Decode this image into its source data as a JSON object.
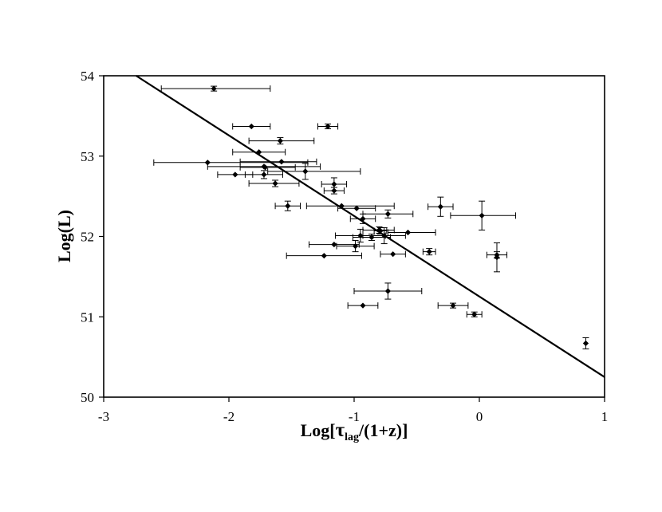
{
  "chart_data": {
    "type": "scatter",
    "title": "",
    "xlabel": {
      "main": "Log[",
      "greek": "τ",
      "sub": "lag",
      "rest": "/(1+z)]"
    },
    "ylabel": "Log(L)",
    "xlim": [
      -3,
      1
    ],
    "ylim": [
      50,
      54
    ],
    "x_ticks": [
      -3,
      -2,
      -1,
      0,
      1
    ],
    "y_ticks": [
      50,
      51,
      52,
      53,
      54
    ],
    "x_tick_labels": [
      "-3",
      "-2",
      "-1",
      "0",
      "1"
    ],
    "y_tick_labels": [
      "50",
      "51",
      "52",
      "53",
      "54"
    ],
    "grid": false,
    "legend": "none",
    "fit_line": {
      "x": [
        -3,
        1
      ],
      "y": [
        54.26,
        50.25
      ]
    },
    "series": [
      {
        "points": [
          {
            "x": -2.12,
            "y": 53.84,
            "xerr": [
              0.42,
              0.45
            ],
            "yerr": [
              0.03,
              0.03
            ]
          },
          {
            "x": -1.82,
            "y": 53.37,
            "xerr": [
              0.15,
              0.15
            ],
            "yerr": [
              0,
              0
            ]
          },
          {
            "x": -1.21,
            "y": 53.37,
            "xerr": [
              0.08,
              0.08
            ],
            "yerr": [
              0.03,
              0.03
            ]
          },
          {
            "x": -1.59,
            "y": 53.19,
            "xerr": [
              0.25,
              0.27
            ],
            "yerr": [
              0.04,
              0.04
            ]
          },
          {
            "x": -1.76,
            "y": 53.05,
            "xerr": [
              0.21,
              0.21
            ],
            "yerr": [
              0,
              0
            ]
          },
          {
            "x": -2.17,
            "y": 52.92,
            "xerr": [
              0.43,
              0.8
            ],
            "yerr": [
              0,
              0
            ]
          },
          {
            "x": -1.58,
            "y": 52.93,
            "xerr": [
              0.33,
              0.28
            ],
            "yerr": [
              0,
              0
            ]
          },
          {
            "x": -1.72,
            "y": 52.87,
            "xerr": [
              0.45,
              0.45
            ],
            "yerr": [
              0,
              0
            ]
          },
          {
            "x": -1.71,
            "y": 52.86,
            "xerr": [
              0.2,
              0.24
            ],
            "yerr": [
              0,
              0
            ]
          },
          {
            "x": -1.39,
            "y": 52.81,
            "xerr": [
              0.3,
              0.44
            ],
            "yerr": [
              0.1,
              0.1
            ]
          },
          {
            "x": -1.72,
            "y": 52.77,
            "xerr": [
              0.15,
              0.15
            ],
            "yerr": [
              0.05,
              0.05
            ]
          },
          {
            "x": -1.95,
            "y": 52.77,
            "xerr": [
              0.14,
              0.14
            ],
            "yerr": [
              0,
              0
            ]
          },
          {
            "x": -1.63,
            "y": 52.66,
            "xerr": [
              0.21,
              0.19
            ],
            "yerr": [
              0.04,
              0.04
            ]
          },
          {
            "x": -1.16,
            "y": 52.65,
            "xerr": [
              0.1,
              0.1
            ],
            "yerr": [
              0.08,
              0.08
            ]
          },
          {
            "x": -1.16,
            "y": 52.57,
            "xerr": [
              0.08,
              0.08
            ],
            "yerr": [
              0.04,
              0.04
            ]
          },
          {
            "x": -1.53,
            "y": 52.38,
            "xerr": [
              0.1,
              0.1
            ],
            "yerr": [
              0.06,
              0.06
            ]
          },
          {
            "x": -1.1,
            "y": 52.38,
            "xerr": [
              0.28,
              0.42
            ],
            "yerr": [
              0,
              0
            ]
          },
          {
            "x": -0.98,
            "y": 52.35,
            "xerr": [
              0.15,
              0.15
            ],
            "yerr": [
              0,
              0
            ]
          },
          {
            "x": -0.31,
            "y": 52.37,
            "xerr": [
              0.1,
              0.1
            ],
            "yerr": [
              0.12,
              0.12
            ]
          },
          {
            "x": 0.02,
            "y": 52.26,
            "xerr": [
              0.25,
              0.27
            ],
            "yerr": [
              0.18,
              0.18
            ]
          },
          {
            "x": -0.73,
            "y": 52.28,
            "xerr": [
              0.2,
              0.2
            ],
            "yerr": [
              0.05,
              0.05
            ]
          },
          {
            "x": -0.93,
            "y": 52.22,
            "xerr": [
              0.1,
              0.1
            ],
            "yerr": [
              0.06,
              0.06
            ]
          },
          {
            "x": -0.8,
            "y": 52.08,
            "xerr": [
              0.13,
              0.12
            ],
            "yerr": [
              0.04,
              0.04
            ]
          },
          {
            "x": -0.79,
            "y": 52.07,
            "xerr": [
              0.05,
              0.05
            ],
            "yerr": [
              0.04,
              0.04
            ]
          },
          {
            "x": -0.57,
            "y": 52.05,
            "xerr": [
              0.16,
              0.22
            ],
            "yerr": [
              0,
              0
            ]
          },
          {
            "x": -0.95,
            "y": 52.01,
            "xerr": [
              0.2,
              0.2
            ],
            "yerr": [
              0.08,
              0.08
            ]
          },
          {
            "x": -0.86,
            "y": 51.99,
            "xerr": [
              0.15,
              0.15
            ],
            "yerr": [
              0.04,
              0.04
            ]
          },
          {
            "x": -0.76,
            "y": 52.01,
            "xerr": [
              0.17,
              0.17
            ],
            "yerr": [
              0.1,
              0.1
            ]
          },
          {
            "x": -1.16,
            "y": 51.9,
            "xerr": [
              0.2,
              0.2
            ],
            "yerr": [
              0,
              0
            ]
          },
          {
            "x": -0.99,
            "y": 51.88,
            "xerr": [
              0.15,
              0.15
            ],
            "yerr": [
              0.07,
              0.07
            ]
          },
          {
            "x": -0.4,
            "y": 51.81,
            "xerr": [
              0.05,
              0.05
            ],
            "yerr": [
              0.04,
              0.04
            ]
          },
          {
            "x": -1.24,
            "y": 51.76,
            "xerr": [
              0.3,
              0.3
            ],
            "yerr": [
              0,
              0
            ]
          },
          {
            "x": -0.69,
            "y": 51.78,
            "xerr": [
              0.1,
              0.1
            ],
            "yerr": [
              0,
              0
            ]
          },
          {
            "x": 0.14,
            "y": 51.77,
            "xerr": [
              0.08,
              0.08
            ],
            "yerr": [
              0.04,
              0.04
            ]
          },
          {
            "x": 0.14,
            "y": 51.74,
            "xerr": [
              0,
              0
            ],
            "yerr": [
              0.18,
              0.18
            ]
          },
          {
            "x": -0.73,
            "y": 51.32,
            "xerr": [
              0.27,
              0.27
            ],
            "yerr": [
              0.1,
              0.1
            ]
          },
          {
            "x": -0.93,
            "y": 51.14,
            "xerr": [
              0.12,
              0.12
            ],
            "yerr": [
              0,
              0
            ]
          },
          {
            "x": -0.21,
            "y": 51.14,
            "xerr": [
              0.12,
              0.12
            ],
            "yerr": [
              0.03,
              0.03
            ]
          },
          {
            "x": -0.04,
            "y": 51.03,
            "xerr": [
              0.06,
              0.06
            ],
            "yerr": [
              0.03,
              0.03
            ]
          },
          {
            "x": 0.85,
            "y": 50.67,
            "xerr": [
              0,
              0
            ],
            "yerr": [
              0.07,
              0.07
            ]
          }
        ]
      }
    ]
  }
}
